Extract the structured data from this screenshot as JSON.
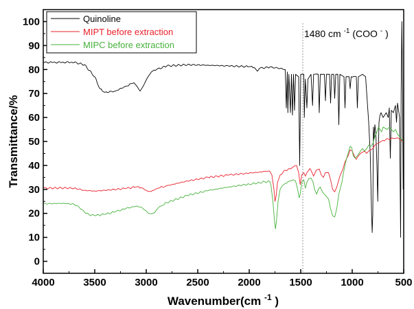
{
  "chart_data": {
    "type": "line",
    "xlabel": "Wavenumber(cm",
    "xlabel_sup": "-1",
    "xlabel_end": ")",
    "ylabel": "Transmittance/%",
    "xlim": [
      4000,
      500
    ],
    "ylim": [
      -5,
      105
    ],
    "x_reversed": true,
    "x_ticks": [
      4000,
      3500,
      3000,
      2500,
      2000,
      1500,
      1000,
      500
    ],
    "y_ticks": [
      0,
      10,
      20,
      30,
      40,
      50,
      60,
      70,
      80,
      90,
      100
    ],
    "grid": false,
    "legend_position": "top-left",
    "annotation": {
      "x": 1480,
      "text_pre": "1480 cm",
      "text_sup1": "-1",
      "text_mid": "(COO",
      "text_sup2": "-",
      "text_post": ")"
    },
    "series": [
      {
        "name": "Quinoline",
        "color": "#000000",
        "points": [
          [
            4000,
            83
          ],
          [
            3700,
            83
          ],
          [
            3600,
            82
          ],
          [
            3500,
            77
          ],
          [
            3450,
            72
          ],
          [
            3400,
            70.5
          ],
          [
            3300,
            71
          ],
          [
            3200,
            73
          ],
          [
            3120,
            74.5
          ],
          [
            3090,
            73
          ],
          [
            3060,
            71
          ],
          [
            3030,
            73
          ],
          [
            2990,
            76.5
          ],
          [
            2950,
            79
          ],
          [
            2900,
            80
          ],
          [
            2800,
            81.5
          ],
          [
            2600,
            82
          ],
          [
            2400,
            81.8
          ],
          [
            2200,
            81.5
          ],
          [
            2000,
            81.2
          ],
          [
            1950,
            80.8
          ],
          [
            1920,
            79.3
          ],
          [
            1900,
            80.5
          ],
          [
            1800,
            81
          ],
          [
            1700,
            80.5
          ],
          [
            1650,
            80
          ],
          [
            1640,
            64
          ],
          [
            1630,
            79
          ],
          [
            1625,
            62
          ],
          [
            1615,
            78
          ],
          [
            1600,
            62
          ],
          [
            1590,
            78
          ],
          [
            1580,
            61
          ],
          [
            1570,
            78
          ],
          [
            1560,
            63
          ],
          [
            1550,
            78
          ],
          [
            1520,
            77
          ],
          [
            1510,
            40
          ],
          [
            1500,
            78
          ],
          [
            1470,
            78
          ],
          [
            1465,
            60
          ],
          [
            1455,
            76
          ],
          [
            1440,
            64
          ],
          [
            1430,
            76
          ],
          [
            1400,
            78
          ],
          [
            1385,
            65
          ],
          [
            1375,
            78
          ],
          [
            1330,
            78
          ],
          [
            1320,
            62
          ],
          [
            1310,
            78
          ],
          [
            1270,
            78
          ],
          [
            1260,
            67
          ],
          [
            1250,
            78
          ],
          [
            1220,
            78
          ],
          [
            1210,
            66
          ],
          [
            1200,
            78
          ],
          [
            1180,
            78
          ],
          [
            1170,
            68
          ],
          [
            1160,
            78
          ],
          [
            1140,
            78
          ],
          [
            1130,
            57
          ],
          [
            1120,
            78
          ],
          [
            1080,
            77
          ],
          [
            1070,
            64
          ],
          [
            1060,
            77
          ],
          [
            1030,
            77
          ],
          [
            1020,
            72
          ],
          [
            1010,
            77
          ],
          [
            960,
            77
          ],
          [
            950,
            64
          ],
          [
            940,
            77
          ],
          [
            900,
            78
          ],
          [
            870,
            77
          ],
          [
            840,
            58
          ],
          [
            825,
            45
          ],
          [
            812,
            20
          ],
          [
            806,
            12
          ],
          [
            800,
            20
          ],
          [
            794,
            56
          ],
          [
            788,
            51
          ],
          [
            780,
            57
          ],
          [
            770,
            53
          ],
          [
            760,
            40
          ],
          [
            752,
            25
          ],
          [
            746,
            45
          ],
          [
            740,
            58
          ],
          [
            730,
            61
          ],
          [
            720,
            62
          ],
          [
            700,
            60
          ],
          [
            670,
            62
          ],
          [
            650,
            60
          ],
          [
            640,
            64
          ],
          [
            630,
            43
          ],
          [
            620,
            63
          ],
          [
            600,
            62
          ],
          [
            580,
            65
          ],
          [
            570,
            58
          ],
          [
            560,
            66
          ],
          [
            540,
            60
          ],
          [
            530,
            10
          ],
          [
            525,
            70
          ],
          [
            518,
            100
          ],
          [
            512,
            75
          ],
          [
            505,
            30
          ]
        ]
      },
      {
        "name": "MIPT before extraction",
        "color": "#e8202a",
        "points": [
          [
            4000,
            30.5
          ],
          [
            3800,
            30.6
          ],
          [
            3700,
            30.5
          ],
          [
            3600,
            29.6
          ],
          [
            3500,
            29.3
          ],
          [
            3400,
            29.6
          ],
          [
            3200,
            30.4
          ],
          [
            3100,
            31
          ],
          [
            3050,
            30.7
          ],
          [
            2990,
            29.3
          ],
          [
            2960,
            29.1
          ],
          [
            2930,
            29.6
          ],
          [
            2880,
            30.6
          ],
          [
            2800,
            31.5
          ],
          [
            2600,
            33.5
          ],
          [
            2400,
            35
          ],
          [
            2200,
            36
          ],
          [
            2000,
            36.8
          ],
          [
            1900,
            37.2
          ],
          [
            1850,
            37.6
          ],
          [
            1800,
            37.6
          ],
          [
            1780,
            36
          ],
          [
            1760,
            30
          ],
          [
            1750,
            25
          ],
          [
            1740,
            27
          ],
          [
            1725,
            33
          ],
          [
            1700,
            36
          ],
          [
            1650,
            38
          ],
          [
            1600,
            38.5
          ],
          [
            1560,
            39.8
          ],
          [
            1540,
            40
          ],
          [
            1520,
            37
          ],
          [
            1505,
            32
          ],
          [
            1490,
            36
          ],
          [
            1470,
            37
          ],
          [
            1455,
            35.5
          ],
          [
            1440,
            37
          ],
          [
            1410,
            38.7
          ],
          [
            1395,
            37.5
          ],
          [
            1375,
            35.5
          ],
          [
            1350,
            38
          ],
          [
            1320,
            38.5
          ],
          [
            1300,
            36
          ],
          [
            1280,
            35
          ],
          [
            1260,
            37
          ],
          [
            1230,
            37
          ],
          [
            1210,
            34
          ],
          [
            1190,
            30
          ],
          [
            1170,
            29
          ],
          [
            1150,
            31
          ],
          [
            1120,
            35.5
          ],
          [
            1090,
            38.5
          ],
          [
            1070,
            41.5
          ],
          [
            1040,
            44
          ],
          [
            1020,
            46.5
          ],
          [
            1000,
            46
          ],
          [
            980,
            44
          ],
          [
            960,
            42.5
          ],
          [
            940,
            44
          ],
          [
            920,
            45
          ],
          [
            880,
            46
          ],
          [
            860,
            45
          ],
          [
            840,
            46
          ],
          [
            800,
            47
          ],
          [
            780,
            48.5
          ],
          [
            760,
            49
          ],
          [
            740,
            49.5
          ],
          [
            720,
            50
          ],
          [
            700,
            50.5
          ],
          [
            650,
            51
          ],
          [
            600,
            51.2
          ],
          [
            560,
            51.5
          ],
          [
            530,
            50.8
          ],
          [
            510,
            50
          ]
        ]
      },
      {
        "name": "MIPC before extraction",
        "color": "#46b13b",
        "points": [
          [
            4000,
            24
          ],
          [
            3800,
            24.2
          ],
          [
            3700,
            23.8
          ],
          [
            3650,
            22.5
          ],
          [
            3600,
            20.5
          ],
          [
            3550,
            19.3
          ],
          [
            3500,
            19.1
          ],
          [
            3400,
            19.6
          ],
          [
            3300,
            20.7
          ],
          [
            3200,
            22
          ],
          [
            3100,
            23
          ],
          [
            3050,
            22.6
          ],
          [
            3000,
            21
          ],
          [
            2980,
            20
          ],
          [
            2950,
            19.8
          ],
          [
            2920,
            20.3
          ],
          [
            2880,
            22.5
          ],
          [
            2800,
            24.5
          ],
          [
            2600,
            27.5
          ],
          [
            2400,
            29.5
          ],
          [
            2200,
            31
          ],
          [
            2000,
            32.2
          ],
          [
            1900,
            32.8
          ],
          [
            1850,
            33.2
          ],
          [
            1800,
            33.2
          ],
          [
            1790,
            32
          ],
          [
            1770,
            25
          ],
          [
            1755,
            17
          ],
          [
            1745,
            13.5
          ],
          [
            1735,
            17
          ],
          [
            1720,
            25
          ],
          [
            1700,
            30
          ],
          [
            1680,
            31.5
          ],
          [
            1650,
            32.5
          ],
          [
            1600,
            33.5
          ],
          [
            1570,
            34
          ],
          [
            1550,
            33.5
          ],
          [
            1530,
            30
          ],
          [
            1515,
            26.5
          ],
          [
            1505,
            28
          ],
          [
            1490,
            33
          ],
          [
            1470,
            34
          ],
          [
            1455,
            30.5
          ],
          [
            1440,
            33
          ],
          [
            1420,
            34.5
          ],
          [
            1400,
            34.7
          ],
          [
            1380,
            33
          ],
          [
            1365,
            30
          ],
          [
            1345,
            28
          ],
          [
            1330,
            30
          ],
          [
            1310,
            31
          ],
          [
            1290,
            29
          ],
          [
            1270,
            28
          ],
          [
            1250,
            27
          ],
          [
            1230,
            26
          ],
          [
            1210,
            22
          ],
          [
            1190,
            19
          ],
          [
            1170,
            18.5
          ],
          [
            1150,
            22
          ],
          [
            1130,
            28
          ],
          [
            1100,
            33
          ],
          [
            1080,
            38
          ],
          [
            1060,
            42
          ],
          [
            1040,
            45
          ],
          [
            1020,
            48
          ],
          [
            1005,
            47.5
          ],
          [
            990,
            44
          ],
          [
            970,
            43
          ],
          [
            950,
            44
          ],
          [
            920,
            46
          ],
          [
            900,
            47
          ],
          [
            880,
            46
          ],
          [
            860,
            47
          ],
          [
            840,
            48.5
          ],
          [
            820,
            48
          ],
          [
            800,
            49
          ],
          [
            780,
            52
          ],
          [
            760,
            54
          ],
          [
            745,
            56
          ],
          [
            730,
            55
          ],
          [
            715,
            54
          ],
          [
            700,
            56
          ],
          [
            680,
            55.5
          ],
          [
            660,
            55
          ],
          [
            640,
            56
          ],
          [
            620,
            55
          ],
          [
            600,
            54
          ],
          [
            580,
            55
          ],
          [
            560,
            53
          ],
          [
            540,
            52
          ],
          [
            520,
            51
          ],
          [
            505,
            50
          ]
        ]
      }
    ]
  }
}
